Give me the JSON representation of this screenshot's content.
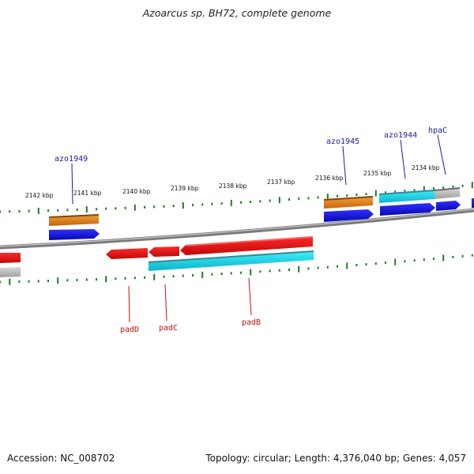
{
  "title": "Azoarcus sp. BH72, complete genome",
  "accession_label": "Accession: NC_008702",
  "genome_info": "Topology: circular; Length: 4,376,040 bp; Genes: 4,057",
  "scale_labels": [
    "2142 kbp",
    "2141 kbp",
    "2140 kbp",
    "2139 kbp",
    "2138 kbp",
    "2137 kbp",
    "2136 kbp",
    "2135 kbp",
    "2134 kbp"
  ],
  "gene_labels_top": [
    "azo1949",
    "azo1945",
    "azo1944",
    "hpaC"
  ],
  "gene_labels_bottom": [
    "padD",
    "padC",
    "padB"
  ],
  "colors": {
    "backbone": "#8a8a8a",
    "ticks": "#1f7a1f",
    "orange": "#f08a10",
    "blue": "#1010e0",
    "red": "#e80d0d",
    "cyan": "#12d8e8",
    "gray": "#bbbbbb",
    "label_blue": "#1a1aa8",
    "label_red": "#c81010"
  }
}
